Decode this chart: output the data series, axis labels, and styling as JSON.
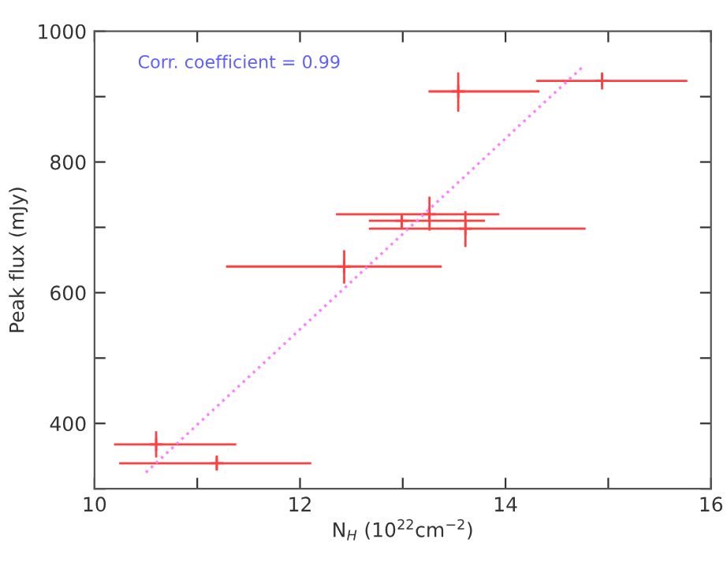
{
  "chart_data": {
    "type": "scatter",
    "xlabel": "N$_{H}$ (10$^{22}$cm$^{−2}$)",
    "ylabel": "Peak flux (mJy)",
    "annotations": [
      "Corr. coefficient = 0.99"
    ],
    "xlim": [
      10,
      16
    ],
    "ylim": [
      300,
      1000
    ],
    "xticks": [
      10,
      {
        "value": 11,
        "label": null
      },
      12,
      {
        "value": 13,
        "label": null
      },
      14,
      {
        "value": 15,
        "label": null
      },
      16
    ],
    "yticks": [
      {
        "value": 300,
        "label": null
      },
      400,
      {
        "value": 500,
        "label": null
      },
      600,
      {
        "value": 700,
        "label": null
      },
      800,
      {
        "value": 900,
        "label": null
      },
      1000
    ],
    "grid": false,
    "legend": false,
    "marker": "cross",
    "series": [
      {
        "color": "#ff4040",
        "x": [
          13.54,
          14.94,
          13.26,
          12.99,
          13.61,
          12.43,
          10.6,
          11.19
        ],
        "values": [
          908,
          924,
          720,
          710,
          698,
          640,
          368,
          339
        ],
        "errors": [
          [
            877,
            937
          ],
          [
            911,
            937
          ],
          [
            695,
            747
          ],
          [
            699,
            720
          ],
          [
            670,
            725
          ],
          [
            614,
            665
          ],
          [
            348,
            388
          ],
          [
            328,
            351
          ]
        ],
        "xerrors": [
          [
            13.25,
            14.33
          ],
          [
            14.3,
            15.77
          ],
          [
            12.35,
            13.94
          ],
          [
            12.67,
            13.8
          ],
          [
            12.67,
            14.78
          ],
          [
            11.28,
            13.38
          ],
          [
            10.19,
            11.38
          ],
          [
            10.24,
            12.11
          ]
        ]
      },
      {
        "type": "line",
        "marker": "none",
        "color": "#ff80ff",
        "line_style": "dotted",
        "x": [
          10.5,
          14.74
        ],
        "values": [
          325,
          944
        ]
      }
    ]
  }
}
